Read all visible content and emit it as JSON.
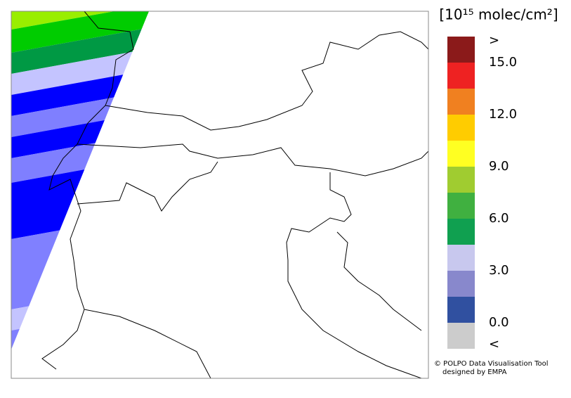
{
  "legend": {
    "title": "[10¹⁵ molec/cm²]",
    "colors": [
      "#8b1a1a",
      "#ee2222",
      "#f08020",
      "#ffcc00",
      "#ffff22",
      "#a0cc30",
      "#40b040",
      "#10a050",
      "#c8c8ee",
      "#8888cc",
      "#3050a0",
      "#cccccc"
    ],
    "labels": [
      ">",
      "15.0",
      "12.0",
      "9.0",
      "6.0",
      "3.0",
      "0.0",
      "<"
    ]
  },
  "credits": {
    "line1": "© POLPO Data Visualisation Tool",
    "line2": "designed by EMPA"
  }
}
